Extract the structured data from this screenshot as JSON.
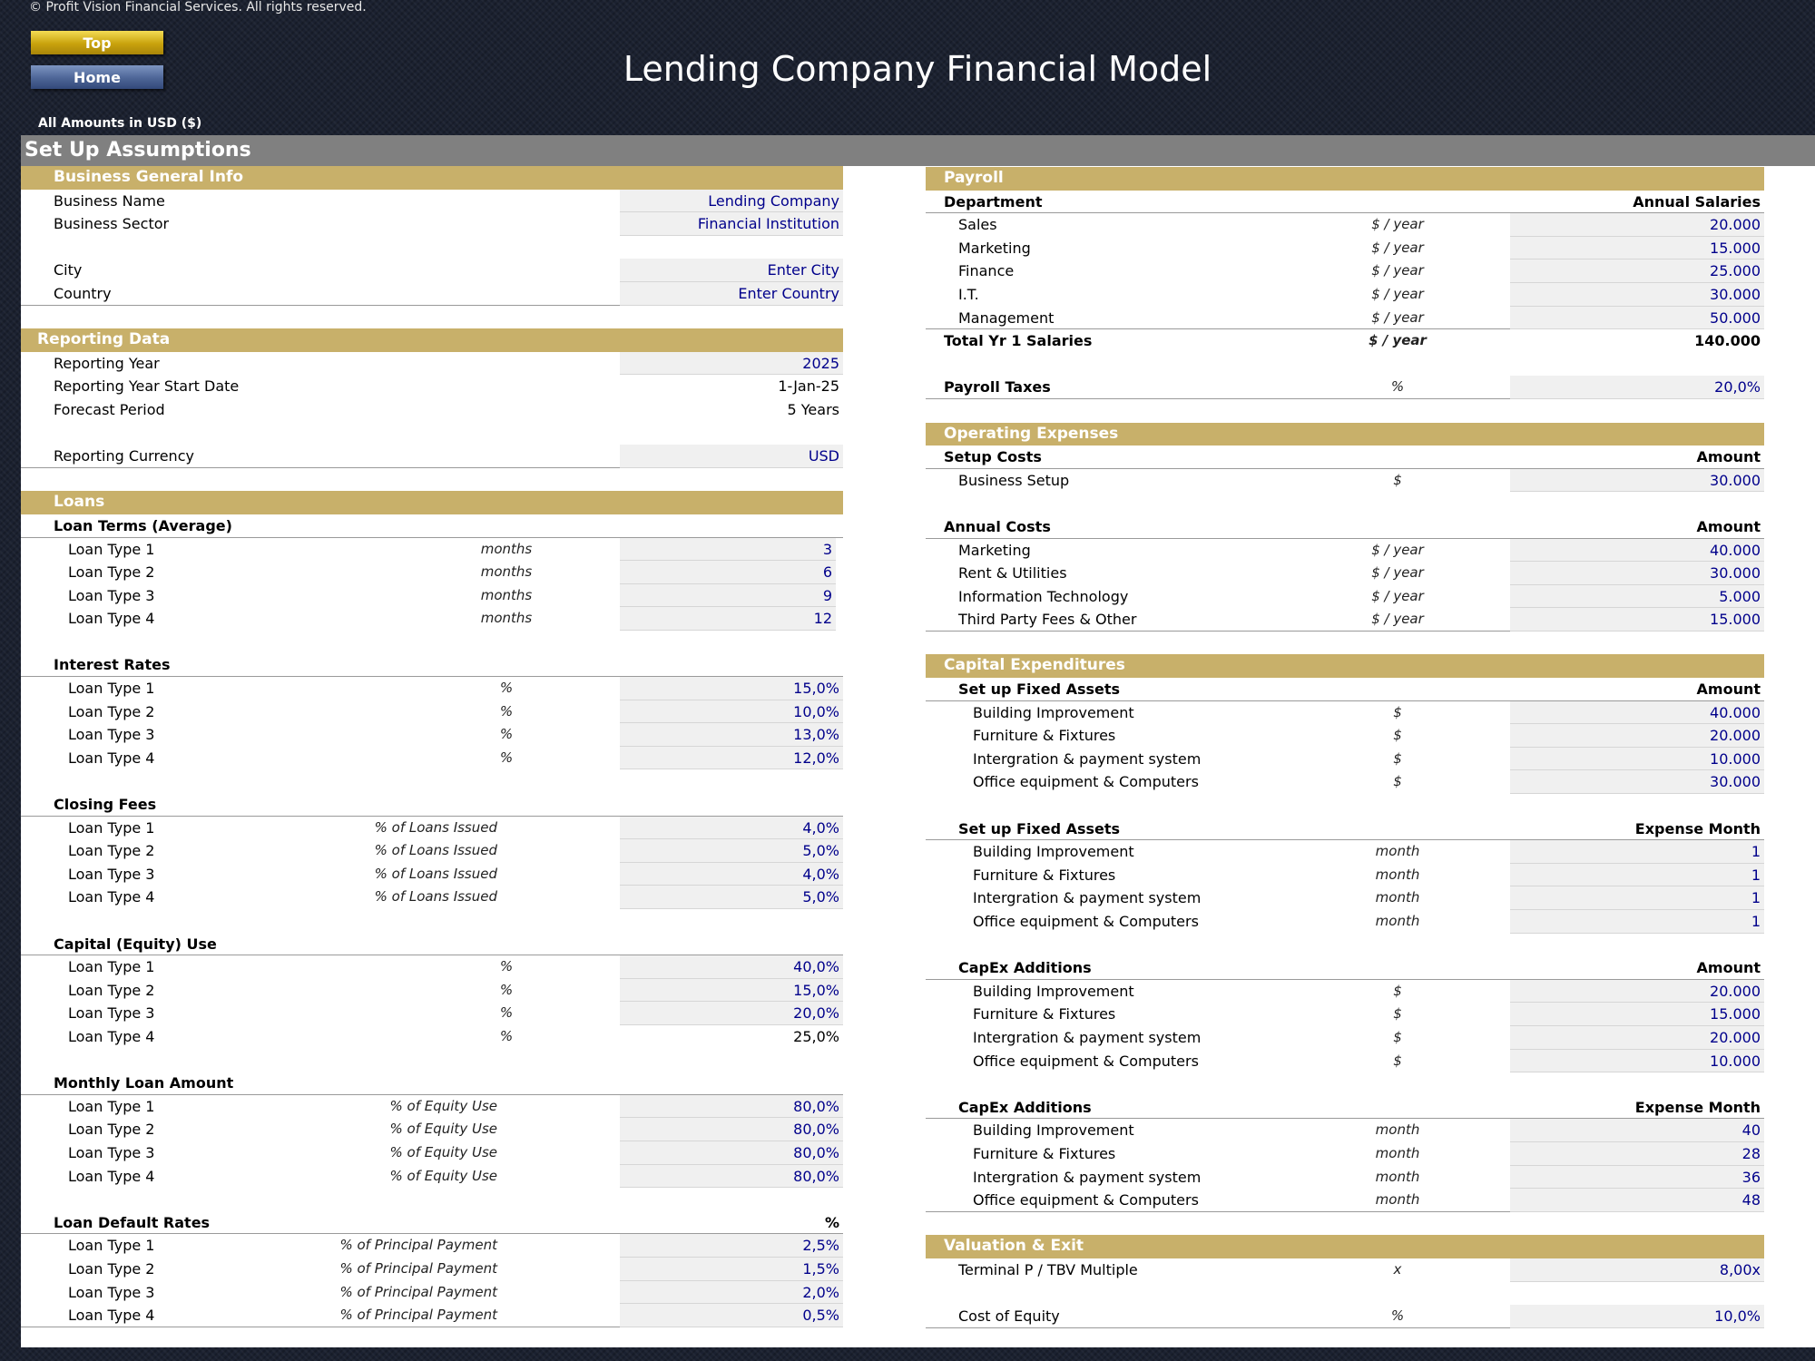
{
  "copyright": "© Profit Vision Financial Services. All rights reserved.",
  "nav": {
    "top_label": "Top",
    "home_label": "Home"
  },
  "title": "Lending Company Financial Model",
  "amounts_note": "All Amounts in  USD ($)",
  "section_title": "Set Up Assumptions",
  "business": {
    "header": "Business General Info",
    "name_label": "Business Name",
    "name_value": "Lending Company",
    "sector_label": "Business Sector",
    "sector_value": "Financial Institution",
    "city_label": "City",
    "city_value": "Enter City",
    "country_label": "Country",
    "country_value": "Enter Country"
  },
  "reporting": {
    "header": "Reporting Data",
    "year_label": "Reporting Year",
    "year_value": "2025",
    "start_label": "Reporting Year Start Date",
    "start_value": "1-Jan-25",
    "forecast_label": "Forecast Period",
    "forecast_value": "5 Years",
    "currency_label": "Reporting Currency",
    "currency_value": "USD"
  },
  "loans": {
    "header": "Loans",
    "terms": {
      "title": "Loan Terms (Average)",
      "unit": "months",
      "rows": [
        {
          "label": "Loan Type 1",
          "value": "3"
        },
        {
          "label": "Loan Type 2",
          "value": "6"
        },
        {
          "label": "Loan Type 3",
          "value": "9"
        },
        {
          "label": "Loan Type 4",
          "value": "12"
        }
      ]
    },
    "interest": {
      "title": "Interest Rates",
      "unit": "%",
      "rows": [
        {
          "label": "Loan Type 1",
          "value": "15,0%"
        },
        {
          "label": "Loan Type 2",
          "value": "10,0%"
        },
        {
          "label": "Loan Type 3",
          "value": "13,0%"
        },
        {
          "label": "Loan Type 4",
          "value": "12,0%"
        }
      ]
    },
    "closing": {
      "title": "Closing Fees",
      "unit": "% of Loans Issued",
      "rows": [
        {
          "label": "Loan Type 1",
          "value": "4,0%"
        },
        {
          "label": "Loan Type 2",
          "value": "5,0%"
        },
        {
          "label": "Loan Type 3",
          "value": "4,0%"
        },
        {
          "label": "Loan Type 4",
          "value": "5,0%"
        }
      ]
    },
    "equity": {
      "title": "Capital (Equity) Use",
      "unit": "%",
      "rows": [
        {
          "label": "Loan Type 1",
          "value": "40,0%"
        },
        {
          "label": "Loan Type 2",
          "value": "15,0%"
        },
        {
          "label": "Loan Type 3",
          "value": "20,0%"
        },
        {
          "label": "Loan Type 4",
          "value": "25,0%"
        }
      ]
    },
    "monthly": {
      "title": "Monthly Loan Amount",
      "unit": "% of Equity Use",
      "rows": [
        {
          "label": "Loan Type 1",
          "value": "80,0%"
        },
        {
          "label": "Loan Type 2",
          "value": "80,0%"
        },
        {
          "label": "Loan Type 3",
          "value": "80,0%"
        },
        {
          "label": "Loan Type 4",
          "value": "80,0%"
        }
      ]
    },
    "default": {
      "title": "Loan Default Rates",
      "col": "%",
      "unit": "% of Principal Payment",
      "rows": [
        {
          "label": "Loan Type 1",
          "value": "2,5%"
        },
        {
          "label": "Loan Type 2",
          "value": "1,5%"
        },
        {
          "label": "Loan Type 3",
          "value": "2,0%"
        },
        {
          "label": "Loan Type 4",
          "value": "0,5%"
        }
      ]
    }
  },
  "payroll": {
    "header": "Payroll",
    "dept_label": "Department",
    "col": "Annual Salaries",
    "unit": "$ / year",
    "rows": [
      {
        "label": "Sales",
        "value": "20.000"
      },
      {
        "label": "Marketing",
        "value": "15.000"
      },
      {
        "label": "Finance",
        "value": "25.000"
      },
      {
        "label": "I.T.",
        "value": "30.000"
      },
      {
        "label": "Management",
        "value": "50.000"
      }
    ],
    "total_label": "Total Yr 1 Salaries",
    "total_unit": "$ / year",
    "total_value": "140.000",
    "taxes_label": "Payroll Taxes",
    "taxes_unit": "%",
    "taxes_value": "20,0%"
  },
  "opex": {
    "header": "Operating Expenses",
    "setup_title": "Setup Costs",
    "col": "Amount",
    "setup_label": "Business Setup",
    "setup_unit": "$",
    "setup_value": "30.000",
    "annual_title": "Annual Costs",
    "annual_unit": "$ / year",
    "annual_rows": [
      {
        "label": "Marketing",
        "value": "40.000"
      },
      {
        "label": "Rent & Utilities",
        "value": "30.000"
      },
      {
        "label": "Information Technology",
        "value": "5.000"
      },
      {
        "label": "Third Party Fees & Other",
        "value": "15.000"
      }
    ]
  },
  "capex": {
    "header": "Capital Expenditures",
    "fixed_title": "Set up Fixed Assets",
    "amount_col": "Amount",
    "month_col": "Expense Month",
    "adds_title": "CapEx Additions",
    "dollar_unit": "$",
    "month_unit": "month",
    "items": [
      "Building Improvement",
      "Furniture & Fixtures",
      "Intergration & payment system",
      "Office equipment & Computers"
    ],
    "fixed_amounts": [
      "40.000",
      "20.000",
      "10.000",
      "30.000"
    ],
    "fixed_months": [
      "1",
      "1",
      "1",
      "1"
    ],
    "add_amounts": [
      "20.000",
      "15.000",
      "20.000",
      "10.000"
    ],
    "add_months": [
      "40",
      "28",
      "36",
      "48"
    ]
  },
  "valuation": {
    "header": "Valuation & Exit",
    "multiple_label": "Terminal P / TBV Multiple",
    "multiple_unit": "x",
    "multiple_value": "8,00x",
    "coe_label": "Cost of Equity",
    "coe_unit": "%",
    "coe_value": "10,0%"
  }
}
